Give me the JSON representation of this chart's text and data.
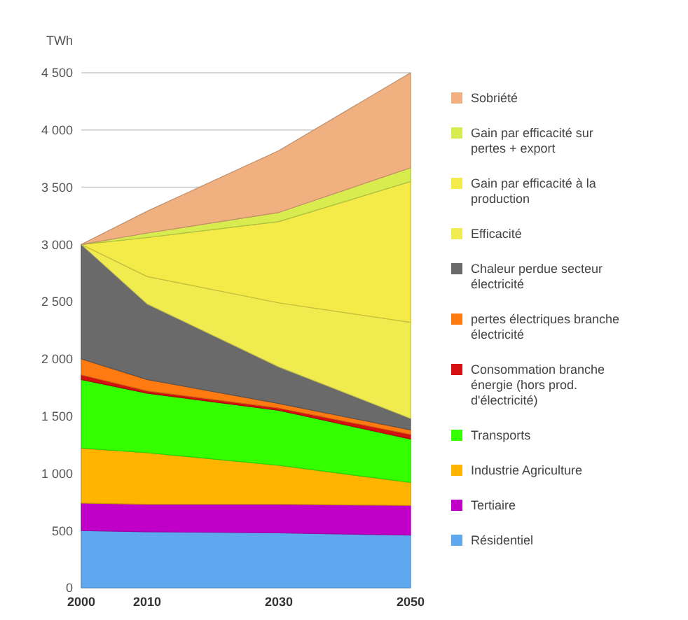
{
  "chart_data": {
    "type": "area",
    "stacked": true,
    "ylabel": "TWh",
    "x": [
      2000,
      2010,
      2030,
      2050
    ],
    "xlim": [
      2000,
      2050
    ],
    "xticks": [
      2000,
      2010,
      2030,
      2050
    ],
    "ylim": [
      0,
      4500
    ],
    "yticks": [
      0,
      {
        "value": 500,
        "label": "500"
      },
      {
        "value": 1000,
        "label": "1 000"
      },
      {
        "value": 1500,
        "label": "1 500"
      },
      {
        "value": 2000,
        "label": "2 000"
      },
      {
        "value": 2500,
        "label": "2 500"
      },
      {
        "value": 3000,
        "label": "3 000"
      },
      {
        "value": 3500,
        "label": "3 500"
      },
      {
        "value": 4000,
        "label": "4 000"
      },
      {
        "value": 4500,
        "label": "4 500"
      }
    ],
    "grid": "y",
    "legend": "right",
    "series": [
      {
        "name": "Résidentiel",
        "color": "#5fa8f0",
        "values": [
          500,
          490,
          480,
          460
        ]
      },
      {
        "name": "Tertiaire",
        "color": "#c000c8",
        "values": [
          240,
          240,
          250,
          260
        ]
      },
      {
        "name": "Industrie Agriculture",
        "color": "#ffb400",
        "values": [
          480,
          450,
          340,
          200
        ]
      },
      {
        "name": "Transports",
        "color": "#33ff00",
        "values": [
          600,
          520,
          480,
          380
        ]
      },
      {
        "name": "Consommation branche énergie (hors prod. d'électricité)",
        "color": "#d41010",
        "values": [
          40,
          20,
          20,
          40
        ]
      },
      {
        "name": "pertes électriques branche électricité",
        "color": "#ff7a10",
        "values": [
          140,
          100,
          40,
          40
        ]
      },
      {
        "name": "Chaleur perdue secteur électricité",
        "color": "#6a6a6a",
        "values": [
          1000,
          660,
          320,
          100
        ]
      },
      {
        "name": "Efficacité",
        "color": "#f0ec50",
        "values": [
          0,
          240,
          560,
          840
        ]
      },
      {
        "name": "Gain par efficacité à la production",
        "color": "#f4ea48",
        "values": [
          0,
          340,
          710,
          1230
        ]
      },
      {
        "name": "Gain par efficacité sur pertes + export",
        "color": "#d8ec50",
        "values": [
          0,
          40,
          80,
          120
        ]
      },
      {
        "name": "Sobriété",
        "color": "#f0b080",
        "values": [
          0,
          190,
          540,
          830
        ]
      }
    ]
  }
}
